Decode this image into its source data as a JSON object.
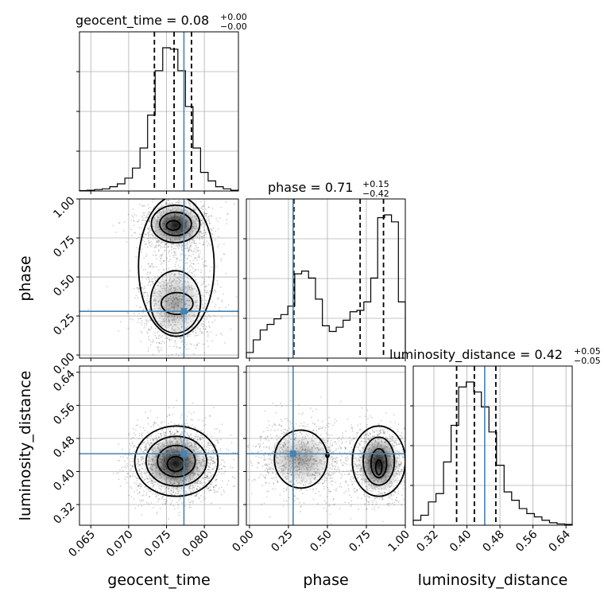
{
  "chart_data": {
    "type": "corner",
    "parameters": [
      "geocent_time",
      "phase",
      "luminosity_distance"
    ],
    "truths": [
      0.0773,
      0.28,
      0.443
    ],
    "titles": [
      {
        "label": "geocent_time = 0.08",
        "plus": "+0.00",
        "minus": "−0.00"
      },
      {
        "label": "phase = 0.71",
        "plus": "+0.15",
        "minus": "−0.42"
      },
      {
        "label": "luminosity_distance = 0.42",
        "plus": "+0.05",
        "minus": "−0.05"
      }
    ],
    "axes": {
      "geocent_time": {
        "lim": [
          0.0635,
          0.0845
        ],
        "ticks": [
          "0.065",
          "0.070",
          "0.075",
          "0.080"
        ],
        "tick_values": [
          0.065,
          0.07,
          0.075,
          0.08
        ]
      },
      "phase": {
        "lim": [
          -0.02,
          1.0
        ],
        "ticks": [
          "0.00",
          "0.25",
          "0.50",
          "0.75",
          "1.00"
        ],
        "tick_values": [
          0.0,
          0.25,
          0.5,
          0.75,
          1.0
        ]
      },
      "luminosity_distance": {
        "lim": [
          0.27,
          0.655
        ],
        "ticks": [
          "0.32",
          "0.40",
          "0.48",
          "0.56",
          "0.64"
        ],
        "tick_values": [
          0.32,
          0.4,
          0.48,
          0.56,
          0.64
        ]
      }
    },
    "histograms": {
      "geocent_time": {
        "bins": [
          0.0635,
          0.0845
        ],
        "counts": [
          0.3,
          0.5,
          1,
          1.5,
          3,
          5,
          9,
          16,
          30,
          53,
          84,
          100,
          99,
          84,
          59,
          30,
          13,
          7,
          3,
          1.5,
          0.5
        ],
        "quantiles": [
          0.0734,
          0.076,
          0.0783
        ]
      },
      "phase": {
        "bins": [
          -0.02,
          1.0
        ],
        "counts": [
          4,
          13,
          20,
          24,
          28,
          31,
          37,
          60,
          62,
          57,
          42,
          23,
          19,
          22,
          27,
          33,
          34,
          40,
          57,
          100,
          102,
          97,
          40
        ],
        "quantiles": [
          0.285,
          0.71,
          0.86
        ]
      },
      "luminosity_distance": {
        "bins": [
          0.27,
          0.655
        ],
        "counts": [
          3,
          6,
          14,
          19,
          38,
          60,
          83,
          86,
          80,
          71,
          56,
          36,
          20,
          15,
          10,
          7,
          5,
          3,
          1.5,
          0.8,
          0.5
        ],
        "quantiles": [
          0.375,
          0.418,
          0.47
        ]
      }
    },
    "grid": true
  }
}
